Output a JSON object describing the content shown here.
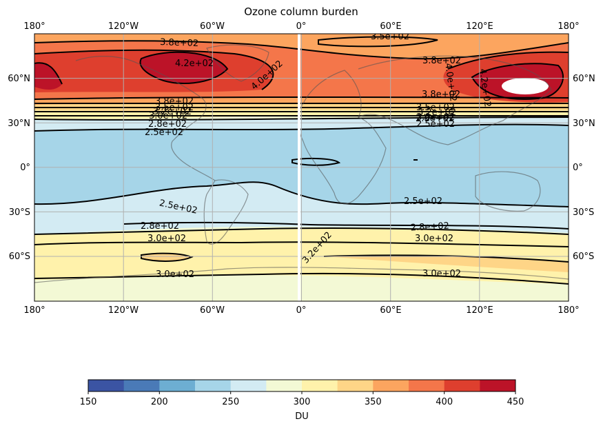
{
  "title": "Ozone column burden",
  "map": {
    "projection": "PlateCarree",
    "lon_ticks": [
      "180°",
      "120°W",
      "60°W",
      "0°",
      "60°E",
      "120°E",
      "180°"
    ],
    "lat_ticks": [
      "60°N",
      "30°N",
      "0°",
      "30°S",
      "60°S"
    ],
    "gridlines": true,
    "coastlines": true
  },
  "bands": {
    "colors": {
      "c275_300": "#f3f9d5",
      "c250_275": "#d3ebf3",
      "c225_250": "#a6d5e8",
      "c300_325": "#fff2ab",
      "c325_350": "#fed587",
      "c350_375": "#fca55f",
      "c375_400": "#f4764a",
      "c400_425": "#de3f2e",
      "c425_450": "#bc1328",
      "white": "#ffffff"
    }
  },
  "contour_labels": [
    {
      "text": "3.8e+02"
    },
    {
      "text": "4.2e+02"
    },
    {
      "text": "4.0e+02"
    },
    {
      "text": "3.5e+02"
    },
    {
      "text": "3.8e+02"
    },
    {
      "text": "4.0e+02"
    },
    {
      "text": "4.2e+02"
    },
    {
      "text": "3.8e+02"
    },
    {
      "text": "3.8e+02"
    },
    {
      "text": "3.5e+02"
    },
    {
      "text": "3.2e+02"
    },
    {
      "text": "3.0e+02"
    },
    {
      "text": "2.8e+02"
    },
    {
      "text": "2.5e+02"
    },
    {
      "text": "3.5e+02"
    },
    {
      "text": "3.2e+02"
    },
    {
      "text": "3.0e+02"
    },
    {
      "text": "2.8e+02"
    },
    {
      "text": "2.5e+02"
    },
    {
      "text": "2.5e+02"
    },
    {
      "text": "2.5e+02"
    },
    {
      "text": "2.8e+02"
    },
    {
      "text": "2.8e+02"
    },
    {
      "text": "3.0e+02"
    },
    {
      "text": "3.0e+02"
    },
    {
      "text": "3.2e+02"
    },
    {
      "text": "3.0e+02"
    },
    {
      "text": "3.0e+02"
    }
  ],
  "colorbar": {
    "label": "DU",
    "ticks": [
      "150",
      "200",
      "250",
      "300",
      "350",
      "400",
      "450"
    ],
    "min": 150,
    "max": 450,
    "step": 25,
    "colors": [
      "#3b54a3",
      "#4a7ab7",
      "#6daed2",
      "#a6d5e8",
      "#d3ebf3",
      "#f3f9d5",
      "#fff2ab",
      "#fed587",
      "#fca55f",
      "#f4764a",
      "#de3f2e",
      "#bc1328"
    ]
  }
}
